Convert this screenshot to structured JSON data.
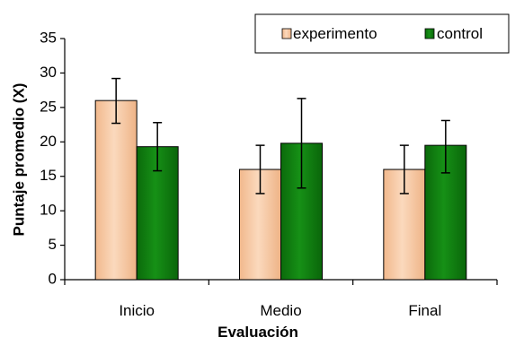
{
  "chart_data": {
    "type": "bar",
    "title": "",
    "xlabel": "Evaluación",
    "ylabel": "Puntaje promedio (X)",
    "categories": [
      "Inicio",
      "Medio",
      "Final"
    ],
    "ylim": [
      0,
      35
    ],
    "yticks": [
      0,
      5,
      10,
      15,
      20,
      25,
      30,
      35
    ],
    "grid": false,
    "legend_position": "top-right",
    "series": [
      {
        "name": "experimento",
        "color": "#f5c59f",
        "values": [
          26.0,
          16.0,
          16.0
        ],
        "error_low": [
          22.7,
          12.5,
          12.5
        ],
        "error_high": [
          29.2,
          19.5,
          19.5
        ]
      },
      {
        "name": "control",
        "color": "#0f7a0f",
        "values": [
          19.3,
          19.8,
          19.5
        ],
        "error_low": [
          15.8,
          13.3,
          15.5
        ],
        "error_high": [
          22.8,
          26.3,
          23.1
        ]
      }
    ]
  }
}
